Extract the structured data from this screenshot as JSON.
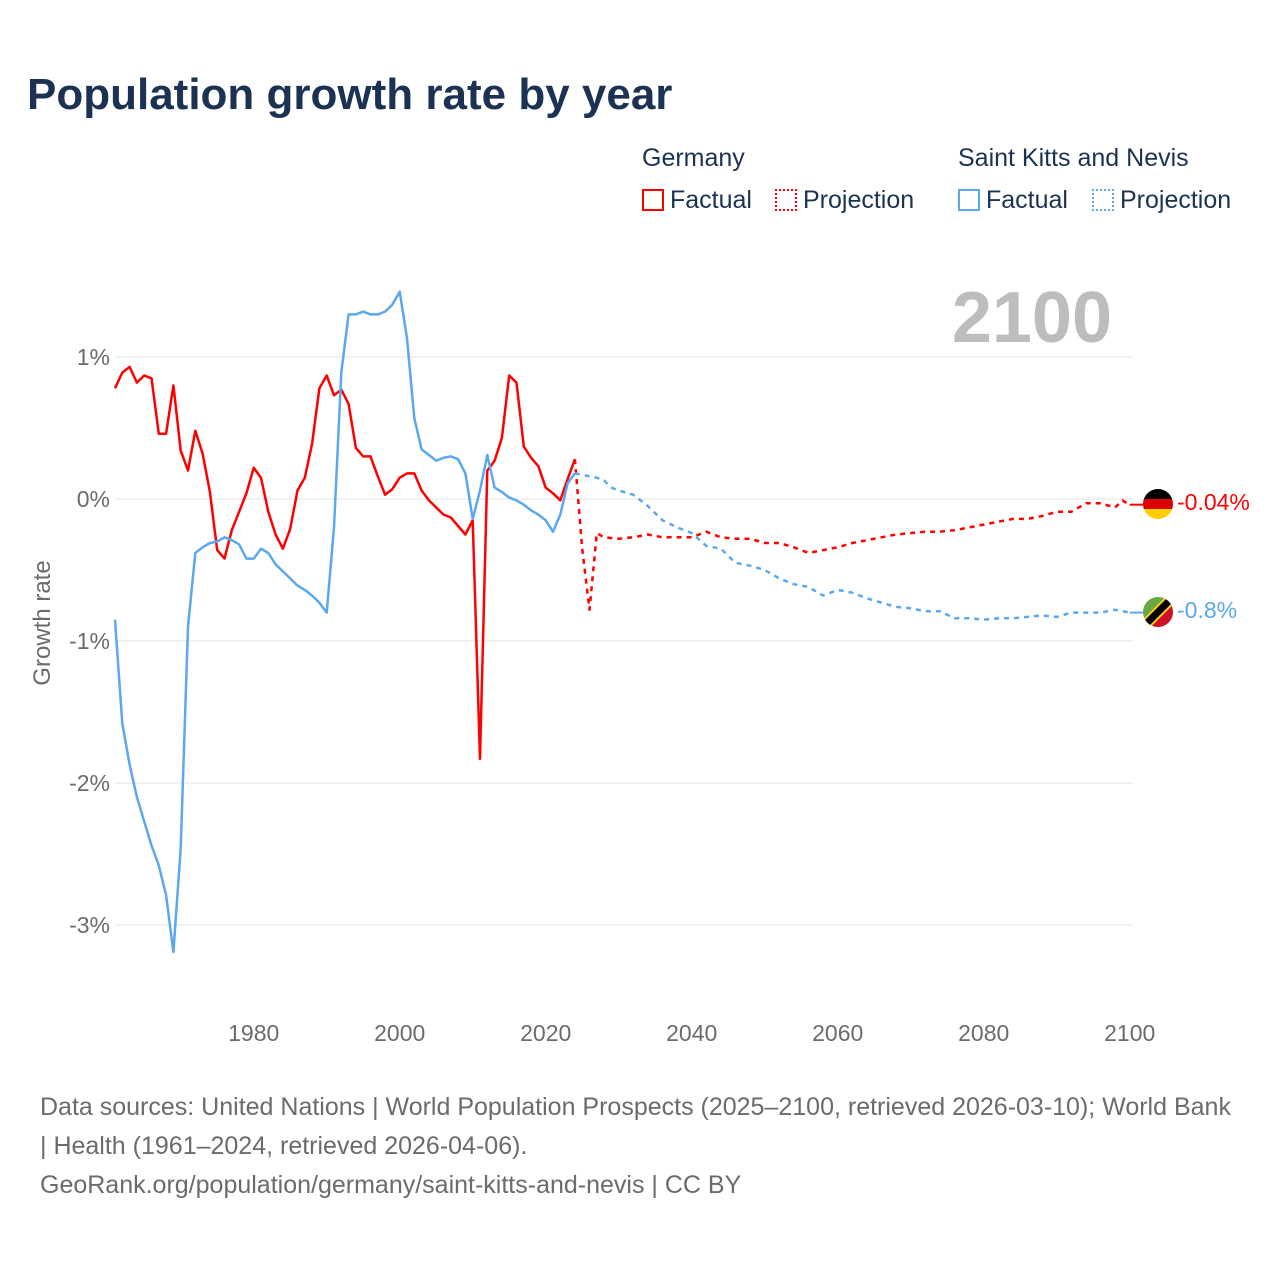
{
  "title": "Population growth rate by year",
  "legend": {
    "groups": [
      {
        "name": "Germany",
        "factual": "Factual",
        "projection": "Projection",
        "color": "#ff0000"
      },
      {
        "name": "Saint Kitts and Nevis",
        "factual": "Factual",
        "projection": "Projection",
        "color": "#5ba8ef"
      }
    ]
  },
  "year_label": "2100",
  "end_labels": {
    "germany": "-0.04%",
    "skn": "-0.8%"
  },
  "footer": {
    "line1": "Data sources: United Nations | World Population Prospects (2025–2100, retrieved 2026-03-10); World Bank | Health (1961–2024, retrieved 2026-04-06).",
    "line2": "GeoRank.org/population/germany/saint-kitts-and-nevis | CC BY"
  },
  "chart_data": {
    "type": "line",
    "title": "Population growth rate by year",
    "ylabel": "Growth rate",
    "xlim": [
      1961,
      2100
    ],
    "ylim": [
      -3.5,
      1.5
    ],
    "yticks": [
      1,
      0,
      -1,
      -2,
      -3
    ],
    "ytick_labels": [
      "1%",
      "0%",
      "-1%",
      "-2%",
      "-3%"
    ],
    "xticks": [
      1980,
      2000,
      2020,
      2040,
      2060,
      2080,
      2100
    ],
    "xtick_labels": [
      "1980",
      "2000",
      "2020",
      "2040",
      "2060",
      "2080",
      "2100"
    ],
    "grid": true,
    "legend_placement": "top-right",
    "series": [
      {
        "name": "Germany Factual",
        "color": "#ff0000",
        "dashed": false,
        "x_start": 1961,
        "values": [
          0.78,
          0.89,
          0.93,
          0.82,
          0.87,
          0.85,
          0.46,
          0.46,
          0.8,
          0.34,
          0.2,
          0.48,
          0.32,
          0.05,
          -0.36,
          -0.42,
          -0.22,
          -0.09,
          0.04,
          0.22,
          0.15,
          -0.09,
          -0.25,
          -0.35,
          -0.21,
          0.06,
          0.15,
          0.39,
          0.78,
          0.87,
          0.73,
          0.77,
          0.67,
          0.36,
          0.3,
          0.3,
          0.16,
          0.03,
          0.07,
          0.15,
          0.18,
          0.18,
          0.06,
          -0.01,
          -0.06,
          -0.11,
          -0.13,
          -0.19,
          -0.25,
          -0.15,
          -1.83,
          0.2,
          0.27,
          0.43,
          0.87,
          0.82,
          0.37,
          0.29,
          0.23,
          0.08,
          0.04,
          -0.01,
          0.14,
          0.28
        ]
      },
      {
        "name": "Saint Kitts and Nevis Factual",
        "color": "#5ba8ef",
        "dashed": false,
        "x_start": 1961,
        "values": [
          -0.85,
          -1.58,
          -1.87,
          -2.1,
          -2.27,
          -2.44,
          -2.58,
          -2.79,
          -3.19,
          -2.46,
          -0.9,
          -0.38,
          -0.34,
          -0.31,
          -0.3,
          -0.27,
          -0.29,
          -0.32,
          -0.42,
          -0.42,
          -0.35,
          -0.38,
          -0.46,
          -0.51,
          -0.56,
          -0.61,
          -0.64,
          -0.68,
          -0.73,
          -0.8,
          -0.2,
          0.89,
          1.3,
          1.3,
          1.32,
          1.3,
          1.3,
          1.32,
          1.37,
          1.46,
          1.13,
          0.57,
          0.35,
          0.31,
          0.27,
          0.29,
          0.3,
          0.28,
          0.18,
          -0.14,
          0.06,
          0.31,
          0.08,
          0.05,
          0.01,
          -0.01,
          -0.04,
          -0.08,
          -0.11,
          -0.15,
          -0.23,
          -0.11,
          0.11,
          0.18
        ]
      },
      {
        "name": "Germany Projection",
        "color": "#ff0000",
        "dashed": true,
        "x": [
          2024,
          2025,
          2026,
          2027,
          2028,
          2030,
          2032,
          2034,
          2036,
          2038,
          2040,
          2042,
          2044,
          2046,
          2048,
          2050,
          2052,
          2054,
          2056,
          2058,
          2060,
          2062,
          2064,
          2066,
          2068,
          2070,
          2072,
          2074,
          2076,
          2078,
          2080,
          2082,
          2084,
          2086,
          2088,
          2090,
          2092,
          2094,
          2096,
          2098,
          2099,
          2100
        ],
        "values": [
          0.28,
          -0.35,
          -0.78,
          -0.24,
          -0.27,
          -0.28,
          -0.27,
          -0.25,
          -0.27,
          -0.27,
          -0.27,
          -0.23,
          -0.27,
          -0.28,
          -0.28,
          -0.31,
          -0.31,
          -0.34,
          -0.38,
          -0.36,
          -0.34,
          -0.31,
          -0.29,
          -0.27,
          -0.25,
          -0.24,
          -0.23,
          -0.23,
          -0.22,
          -0.2,
          -0.18,
          -0.16,
          -0.14,
          -0.14,
          -0.12,
          -0.09,
          -0.09,
          -0.03,
          -0.03,
          -0.06,
          -0.01,
          -0.04
        ]
      },
      {
        "name": "Saint Kitts and Nevis Projection",
        "color": "#5ba8ef",
        "dashed": true,
        "x": [
          2024,
          2025,
          2026,
          2027,
          2028,
          2029,
          2030,
          2032,
          2034,
          2036,
          2038,
          2040,
          2042,
          2044,
          2046,
          2048,
          2050,
          2052,
          2054,
          2056,
          2058,
          2060,
          2062,
          2064,
          2066,
          2068,
          2070,
          2072,
          2074,
          2076,
          2078,
          2080,
          2082,
          2084,
          2086,
          2088,
          2090,
          2092,
          2094,
          2096,
          2098,
          2100
        ],
        "values": [
          0.18,
          0.17,
          0.16,
          0.15,
          0.13,
          0.08,
          0.06,
          0.03,
          -0.05,
          -0.15,
          -0.2,
          -0.24,
          -0.33,
          -0.35,
          -0.45,
          -0.47,
          -0.5,
          -0.56,
          -0.6,
          -0.62,
          -0.68,
          -0.64,
          -0.66,
          -0.7,
          -0.73,
          -0.76,
          -0.77,
          -0.79,
          -0.79,
          -0.84,
          -0.84,
          -0.85,
          -0.84,
          -0.84,
          -0.83,
          -0.82,
          -0.83,
          -0.8,
          -0.8,
          -0.8,
          -0.78,
          -0.8
        ]
      }
    ]
  }
}
